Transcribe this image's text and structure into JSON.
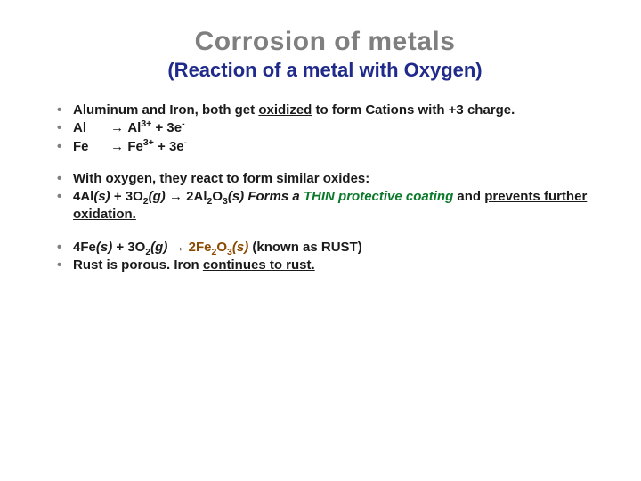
{
  "colors": {
    "title_gray": "#7f7f7f",
    "subtitle_blue": "#1f2a8a",
    "body_black": "#1a1a1a",
    "accent_green": "#0a7a2a",
    "accent_brown": "#8a4a00",
    "background": "#ffffff"
  },
  "typography": {
    "title_family": "Arial Black",
    "title_size_pt": 30,
    "subtitle_size_pt": 22,
    "body_size_pt": 15,
    "body_weight": "bold"
  },
  "title": "Corrosion of metals",
  "subtitle": "(Reaction of a metal with Oxygen)",
  "b1_pre": "Aluminum and Iron, both get ",
  "b1_ox": "oxidized",
  "b1_post": " to form Cations with +3 charge.",
  "b2_sym": "Al",
  "b2_arrow": "  →  ",
  "b2_ion": "Al",
  "b2_charge": "3+",
  "b2_tail": " + 3e",
  "b2_minus": "-",
  "b3_sym": "Fe",
  "b3_arrow": "  →  ",
  "b3_ion": "Fe",
  "b3_charge": "3+",
  "b3_tail": " + 3e",
  "b3_minus": "-",
  "b4": "With oxygen, they react to form similar oxides:",
  "b5_lhs1": "4Al",
  "b5_state_s": "(s)",
  "b5_plus": "  +  3O",
  "b5_o2sub": "2",
  "b5_state_g": "(g)",
  "b5_arrow": "  →  ",
  "b5_rhs": "2Al",
  "b5_rhs_sub1": "2",
  "b5_rhs_o": "O",
  "b5_rhs_sub2": "3",
  "b5_state_s2": "(s)",
  "b5_forms": " Forms a ",
  "b5_thin": "THIN protective coating",
  "b5_and": " and ",
  "b5_prev": "prevents further oxidation.",
  "b6_lhs1": "4Fe",
  "b6_state_s": "(s)",
  "b6_plus": "  +  3O",
  "b6_o2sub": "2",
  "b6_state_g": "(g)",
  "b6_arrow": "  →  ",
  "b6_rhs": "2Fe",
  "b6_rhs_sub1": "2",
  "b6_rhs_o": "O",
  "b6_rhs_sub2": "3",
  "b6_state_s2": "(s) ",
  "b6_tail": "(known as RUST)",
  "b7_a": "Rust is porous.  Iron ",
  "b7_b": "continues to rust."
}
